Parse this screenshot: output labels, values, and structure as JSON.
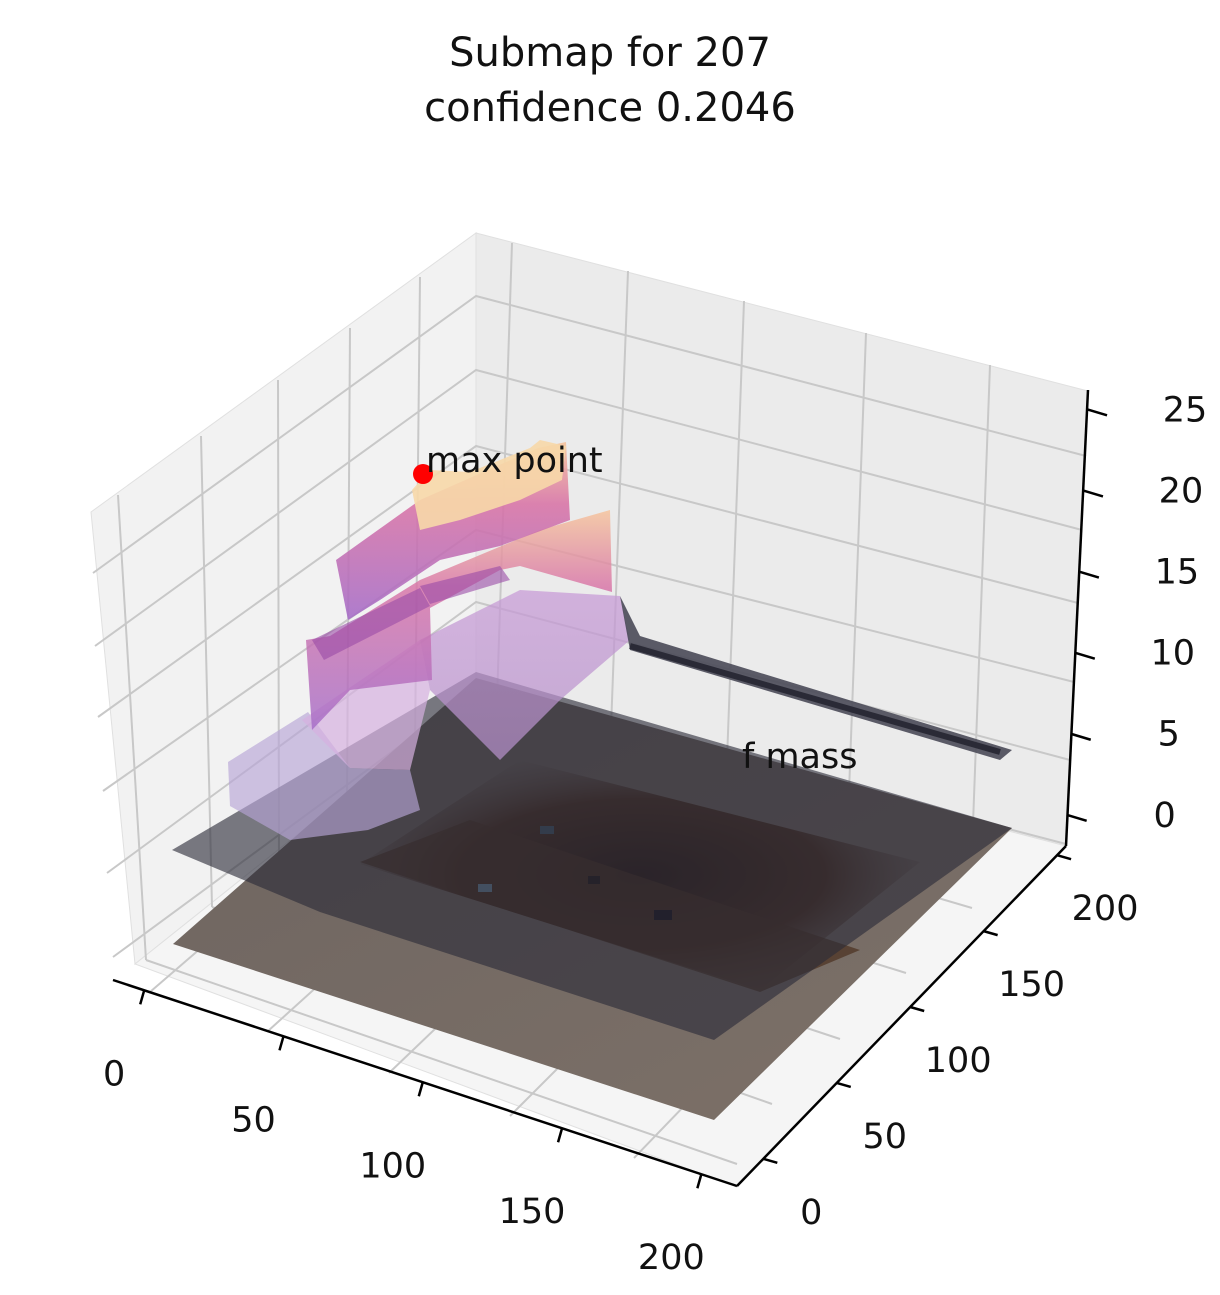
{
  "chart_data": {
    "type": "surface3d",
    "title": "Submap for 207",
    "subtitle": "confidence 0.2046",
    "x_ticks": [
      "0",
      "50",
      "100",
      "150",
      "200"
    ],
    "y_ticks": [
      "0",
      "50",
      "100",
      "150",
      "200"
    ],
    "z_ticks": [
      "0",
      "5",
      "10",
      "15",
      "20",
      "25"
    ],
    "xlim": [
      0,
      224
    ],
    "ylim": [
      0,
      224
    ],
    "zlim": [
      0,
      27
    ],
    "grid": true,
    "annotations": [
      {
        "text": "max point",
        "x": 48,
        "y": 208,
        "z": 25
      },
      {
        "text": "f mass",
        "x": 120,
        "y": 96,
        "z": 12
      }
    ],
    "max_point": {
      "x": 48,
      "y": 208,
      "z": 25
    },
    "colors": {
      "max_point_marker": "#ff0000",
      "surface_base": "#5a5a68",
      "surface_mid": "#b48ad0",
      "surface_high": "#f2a27a",
      "peak": "#f7e3a0",
      "image_floor": "#7a6a5c",
      "image_dark": "#3a2418"
    }
  }
}
